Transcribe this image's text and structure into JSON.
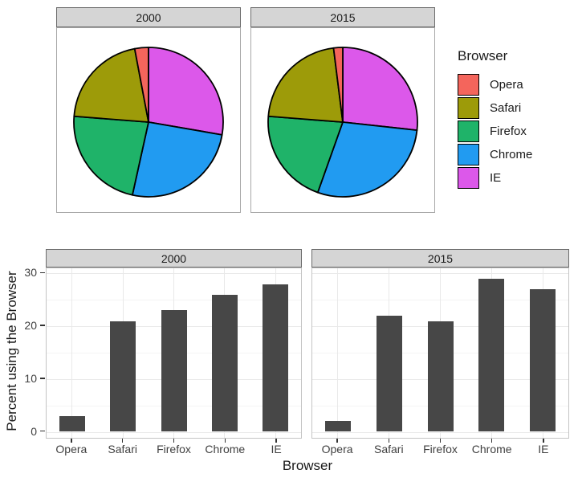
{
  "page": {
    "background": "#FFFFFF"
  },
  "facets": {
    "labels": [
      "2000",
      "2015"
    ]
  },
  "legend": {
    "title": "Browser",
    "items": [
      {
        "label": "Opera",
        "color": "#F4655C"
      },
      {
        "label": "Safari",
        "color": "#9D9B09"
      },
      {
        "label": "Firefox",
        "color": "#1FB369"
      },
      {
        "label": "Chrome",
        "color": "#219BF1"
      },
      {
        "label": "IE",
        "color": "#DC58EA"
      }
    ]
  },
  "axes": {
    "x_title": "Browser",
    "y_title": "Percent using the Browser",
    "y_ticks": [
      0,
      10,
      20,
      30
    ],
    "x_categories": [
      "Opera",
      "Safari",
      "Firefox",
      "Chrome",
      "IE"
    ]
  },
  "chart_data": [
    {
      "type": "pie",
      "title": "",
      "facet_labels": [
        "2000",
        "2015"
      ],
      "categories": [
        "Opera",
        "Safari",
        "Firefox",
        "Chrome",
        "IE"
      ],
      "series": [
        {
          "name": "2000",
          "values": [
            3,
            21,
            23,
            26,
            28
          ]
        },
        {
          "name": "2015",
          "values": [
            2,
            22,
            21,
            29,
            27
          ]
        }
      ],
      "units": "percent",
      "colors": [
        "#F4655C",
        "#9D9B09",
        "#1FB369",
        "#219BF1",
        "#DC58EA"
      ],
      "slice_border_color": "#000000",
      "slice_direction": "clockwise-from-top-in-reverse-category-order",
      "legend_title": "Browser",
      "legend_position": "right"
    },
    {
      "type": "bar",
      "facet_labels": [
        "2000",
        "2015"
      ],
      "categories": [
        "Opera",
        "Safari",
        "Firefox",
        "Chrome",
        "IE"
      ],
      "series": [
        {
          "name": "2000",
          "values": [
            3,
            21,
            23,
            26,
            28
          ]
        },
        {
          "name": "2015",
          "values": [
            2,
            22,
            21,
            29,
            27
          ]
        }
      ],
      "xlabel": "Browser",
      "ylabel": "Percent using the Browser",
      "yticks": [
        0,
        10,
        20,
        30
      ],
      "ylim": [
        0,
        31
      ],
      "grid": true,
      "grid_minor_ticks": [
        5,
        15,
        25
      ],
      "bar_color": "#474747",
      "legend_position": "none"
    }
  ]
}
